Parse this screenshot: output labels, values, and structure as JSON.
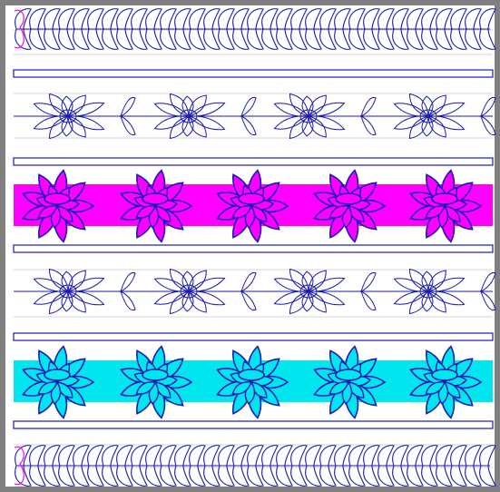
{
  "pattern": {
    "colors": {
      "frame": "#808080",
      "background": "#ffffff",
      "guide_line": "#c8c8c8",
      "stitch": "#1a1ab4",
      "start_marker": "#ff00ff",
      "magenta_fill": "#ff00ff",
      "cyan_fill": "#00e5ee"
    },
    "rows": [
      {
        "kind": "feather-border",
        "marker": true
      },
      {
        "kind": "separator-bar"
      },
      {
        "kind": "outline-flower-vine",
        "flowers": 4
      },
      {
        "kind": "separator-bar"
      },
      {
        "kind": "filled-flower-band",
        "flowers": 5,
        "fill": "magenta"
      },
      {
        "kind": "separator-bar"
      },
      {
        "kind": "outline-flower-vine",
        "flowers": 4
      },
      {
        "kind": "separator-bar"
      },
      {
        "kind": "filled-flower-band",
        "flowers": 5,
        "fill": "cyan"
      },
      {
        "kind": "separator-bar"
      },
      {
        "kind": "feather-border",
        "marker": true
      }
    ]
  }
}
